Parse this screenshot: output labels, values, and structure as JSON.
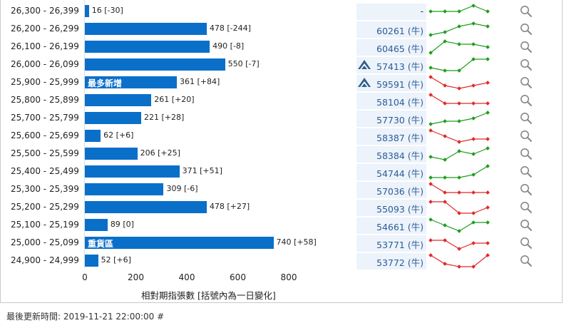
{
  "rows": [
    {
      "range": "26,300 - 26,399",
      "count": 16,
      "change": "[-30]",
      "tag": "",
      "code": "-",
      "flag": false,
      "trend": [
        2,
        2,
        2,
        0,
        2
      ],
      "trend_color": "green"
    },
    {
      "range": "26,200 - 26,299",
      "count": 478,
      "change": "[-244]",
      "tag": "",
      "code": "60261 (牛)",
      "flag": false,
      "trend": [
        4,
        3,
        1,
        0,
        1
      ],
      "trend_color": "green"
    },
    {
      "range": "26,100 - 26,199",
      "count": 490,
      "change": "[-8]",
      "tag": "",
      "code": "60465 (牛)",
      "flag": false,
      "trend": [
        4,
        0,
        1,
        1,
        2
      ],
      "trend_color": "green"
    },
    {
      "range": "26,000 - 26,099",
      "count": 550,
      "change": "[-7]",
      "tag": "",
      "code": "57413 (牛)",
      "flag": true,
      "trend": [
        3,
        4,
        4,
        0,
        0
      ],
      "trend_color": "green"
    },
    {
      "range": "25,900 - 25,999",
      "count": 361,
      "change": "[+84]",
      "tag": "最多新增",
      "code": "59591 (牛)",
      "flag": true,
      "trend": [
        0,
        3,
        4,
        3,
        2
      ],
      "trend_color": "red"
    },
    {
      "range": "25,800 - 25,899",
      "count": 261,
      "change": "[+20]",
      "tag": "",
      "code": "58104 (牛)",
      "flag": false,
      "trend": [
        0,
        3,
        3,
        3,
        3
      ],
      "trend_color": "red"
    },
    {
      "range": "25,700 - 25,799",
      "count": 221,
      "change": "[+28]",
      "tag": "",
      "code": "57730 (牛)",
      "flag": false,
      "trend": [
        4,
        3,
        3,
        2,
        0
      ],
      "trend_color": "green"
    },
    {
      "range": "25,600 - 25,699",
      "count": 62,
      "change": "[+6]",
      "tag": "",
      "code": "58387 (牛)",
      "flag": false,
      "trend": [
        0,
        2,
        4,
        3,
        3
      ],
      "trend_color": "red"
    },
    {
      "range": "25,500 - 25,599",
      "count": 206,
      "change": "[+25]",
      "tag": "",
      "code": "58384 (牛)",
      "flag": false,
      "trend": [
        3,
        4,
        1,
        2,
        0
      ],
      "trend_color": "green"
    },
    {
      "range": "25,400 - 25,499",
      "count": 371,
      "change": "[+51]",
      "tag": "",
      "code": "54744 (牛)",
      "flag": false,
      "trend": [
        4,
        4,
        4,
        3,
        0
      ],
      "trend_color": "green"
    },
    {
      "range": "25,300 - 25,399",
      "count": 309,
      "change": "[-6]",
      "tag": "",
      "code": "57036 (牛)",
      "flag": false,
      "trend": [
        0,
        3,
        3,
        3,
        3
      ],
      "trend_color": "red"
    },
    {
      "range": "25,200 - 25,299",
      "count": 478,
      "change": "[+27]",
      "tag": "",
      "code": "55093 (牛)",
      "flag": false,
      "trend": [
        0,
        0,
        4,
        4,
        2
      ],
      "trend_color": "red"
    },
    {
      "range": "25,100 - 25,199",
      "count": 89,
      "change": "[0]",
      "tag": "",
      "code": "54661 (牛)",
      "flag": false,
      "trend": [
        0,
        2,
        4,
        1,
        1
      ],
      "trend_color": "green"
    },
    {
      "range": "25,000 - 25,099",
      "count": 740,
      "change": "[+58]",
      "tag": "重貨區",
      "code": "53771 (牛)",
      "flag": false,
      "trend": [
        1,
        1,
        4,
        2,
        2
      ],
      "trend_color": "red"
    },
    {
      "range": "24,900 - 24,999",
      "count": 52,
      "change": "[+6]",
      "tag": "",
      "code": "53772 (牛)",
      "flag": false,
      "trend": [
        0,
        3,
        4,
        4,
        0
      ],
      "trend_color": "red"
    }
  ],
  "axis": {
    "ticks": [
      "0",
      "200",
      "400",
      "600",
      "800"
    ],
    "max": 800,
    "label": "相對期指張數 [括號內為一日變化]"
  },
  "footer": "最後更新時間: 2019-11-21 22:00:00 #",
  "colors": {
    "bar": "#0a6fc9",
    "green": "#1e9e1e",
    "red": "#e02a2a",
    "code_bg": "#edf3fa",
    "grid": "#dddddd"
  },
  "icons": {
    "flag": "ship-flag-icon",
    "search": "search-icon"
  }
}
